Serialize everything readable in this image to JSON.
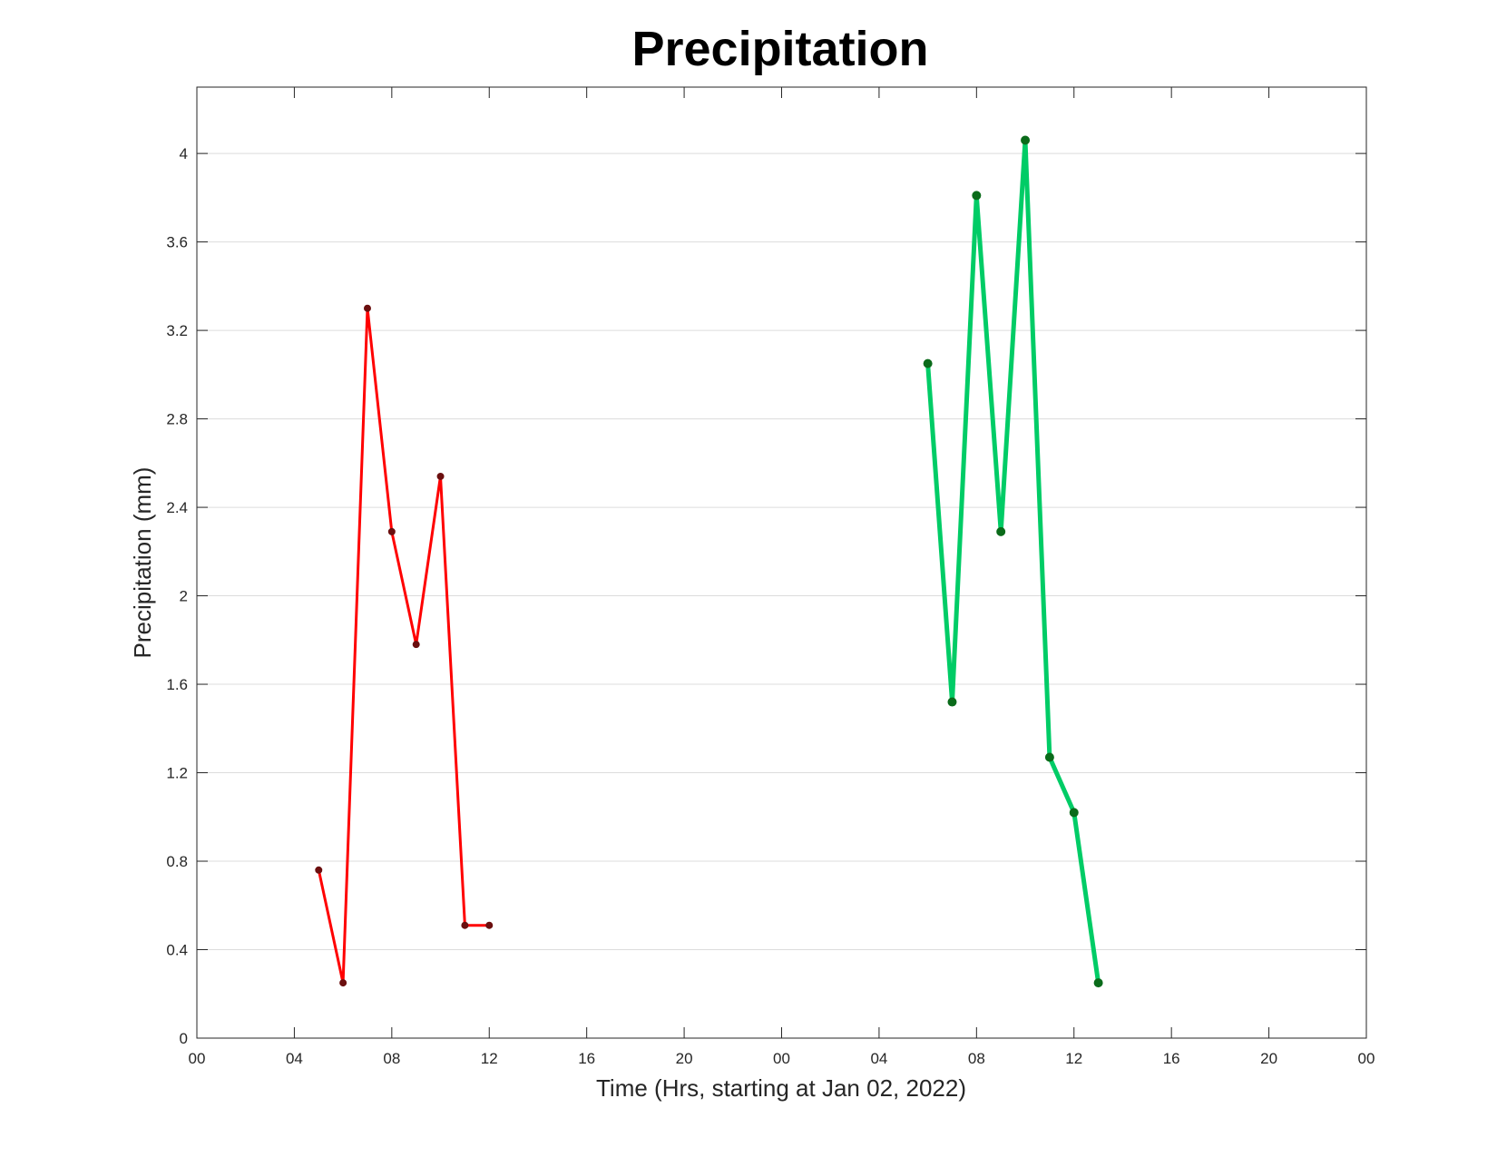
{
  "chart_data": {
    "type": "line",
    "title": "Precipitation",
    "xlabel": "Time (Hrs, starting at Jan 02, 2022)",
    "ylabel": "Precipitation (mm)",
    "x_range_hours": [
      0,
      48
    ],
    "ylim": [
      0,
      4.3
    ],
    "x_ticks": [
      {
        "hour": 0,
        "label": "00"
      },
      {
        "hour": 4,
        "label": "04"
      },
      {
        "hour": 8,
        "label": "08"
      },
      {
        "hour": 12,
        "label": "12"
      },
      {
        "hour": 16,
        "label": "16"
      },
      {
        "hour": 20,
        "label": "20"
      },
      {
        "hour": 24,
        "label": "00"
      },
      {
        "hour": 28,
        "label": "04"
      },
      {
        "hour": 32,
        "label": "08"
      },
      {
        "hour": 36,
        "label": "12"
      },
      {
        "hour": 40,
        "label": "16"
      },
      {
        "hour": 44,
        "label": "20"
      },
      {
        "hour": 48,
        "label": "00"
      }
    ],
    "y_ticks": [
      {
        "value": 0,
        "label": "0"
      },
      {
        "value": 0.4,
        "label": "0.4"
      },
      {
        "value": 0.8,
        "label": "0.8"
      },
      {
        "value": 1.2,
        "label": "1.2"
      },
      {
        "value": 1.6,
        "label": "1.6"
      },
      {
        "value": 2.0,
        "label": "2"
      },
      {
        "value": 2.4,
        "label": "2.4"
      },
      {
        "value": 2.8,
        "label": "2.8"
      },
      {
        "value": 3.2,
        "label": "3.2"
      },
      {
        "value": 3.6,
        "label": "3.6"
      },
      {
        "value": 4.0,
        "label": "4"
      }
    ],
    "grid": "horizontal",
    "series": [
      {
        "color": "#ff0000",
        "marker_color": "#6b0f0f",
        "x": [
          5,
          6,
          7,
          8,
          9,
          10,
          11,
          12
        ],
        "values": [
          0.76,
          0.25,
          3.3,
          2.29,
          1.78,
          2.54,
          0.51,
          0.51
        ]
      },
      {
        "color": "#00cc66",
        "marker_color": "#0a6b1a",
        "x": [
          30,
          31,
          32,
          33,
          34,
          35,
          36,
          37
        ],
        "values": [
          3.05,
          1.52,
          3.81,
          2.29,
          4.06,
          1.27,
          1.02,
          0.25
        ]
      }
    ]
  }
}
